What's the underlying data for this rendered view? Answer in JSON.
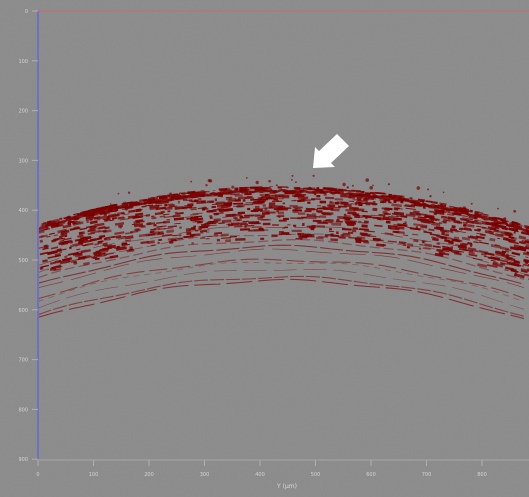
{
  "viewer": {
    "x_axis": {
      "title": "Y (µm)",
      "tick_labels": [
        "0",
        "100",
        "200",
        "300",
        "400",
        "500",
        "600",
        "700",
        "800",
        "900"
      ]
    },
    "y_axis": {
      "tick_labels": [
        "0",
        "100",
        "200",
        "300",
        "400",
        "500",
        "600",
        "700",
        "800",
        "900"
      ]
    },
    "colors": {
      "background": "#8a8a8a",
      "tissue": "#7a0000",
      "y_axis_line": "#6b72c6",
      "top_line": "#c76b6b",
      "arrow": "#ffffff"
    },
    "annotation": {
      "icon": "arrow-icon"
    }
  }
}
